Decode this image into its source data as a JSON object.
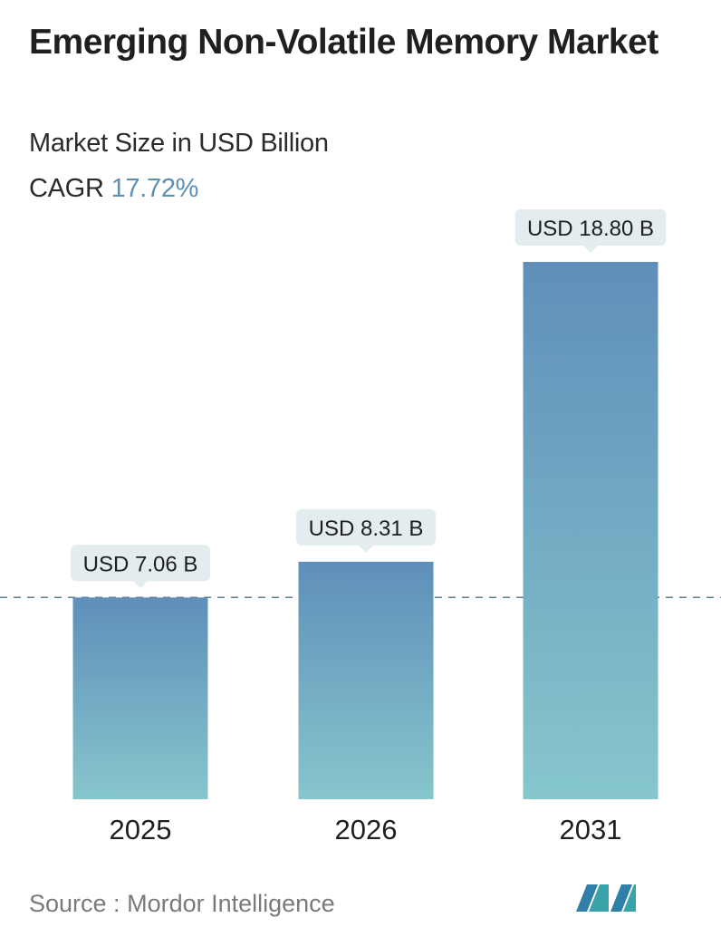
{
  "title": "Emerging Non-Volatile Memory Market",
  "subtitle": "Market Size in USD Billion",
  "cagr_label": "CAGR",
  "cagr_value": "17.72%",
  "source": {
    "label": "Source :",
    "name": "Mordor Intelligence"
  },
  "colors": {
    "bar_top": "#5f8fba",
    "bar_bottom": "#86c6cc",
    "cagr_accent": "#5d8fb3",
    "label_bg": "#e3ecee",
    "dashed_line": "#5d7f94"
  },
  "chart_data": {
    "type": "bar",
    "categories": [
      "2025",
      "2026",
      "2031"
    ],
    "values": [
      7.06,
      8.31,
      18.8
    ],
    "labels": [
      "USD 7.06 B",
      "USD 8.31 B",
      "USD 18.80 B"
    ],
    "ylim": [
      0,
      18.8
    ],
    "reference_line_value": 7.06,
    "grid": false,
    "legend": "none"
  }
}
